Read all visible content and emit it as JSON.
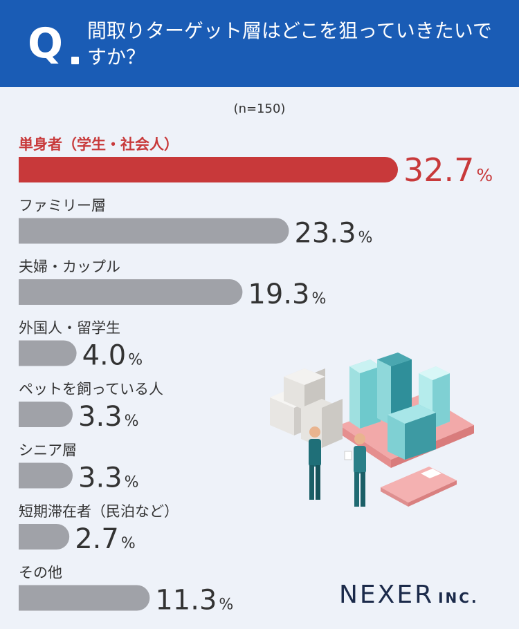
{
  "header": {
    "q_mark": "Q",
    "question": "間取りターゲット層はどこを狙っていきたいですか？"
  },
  "sample_note": "(n=150)",
  "chart_data": {
    "type": "bar",
    "orientation": "horizontal",
    "title": "間取りターゲット層はどこを狙っていきたいですか？",
    "unit": "%",
    "categories": [
      "単身者（学生・社会人）",
      "ファミリー層",
      "夫婦・カップル",
      "外国人・留学生",
      "ペットを飼っている人",
      "シニア層",
      "短期滞在者（民泊など）",
      "その他"
    ],
    "values": [
      32.7,
      23.3,
      19.3,
      4.0,
      3.3,
      3.3,
      2.7,
      11.3
    ],
    "display_values": [
      "32.7",
      "23.3",
      "19.3",
      "4.0",
      "3.3",
      "3.3",
      "2.7",
      "11.3"
    ],
    "highlight_index": 0,
    "colors": {
      "highlight": "#c8393a",
      "default": "#a0a2a8"
    }
  },
  "colors": {
    "header_bg": "#1a5cb5",
    "page_bg": "#eef2f9",
    "text": "#333333",
    "logo": "#1b2a4a"
  },
  "logo": {
    "main": "NEXER",
    "sub": "INC."
  }
}
